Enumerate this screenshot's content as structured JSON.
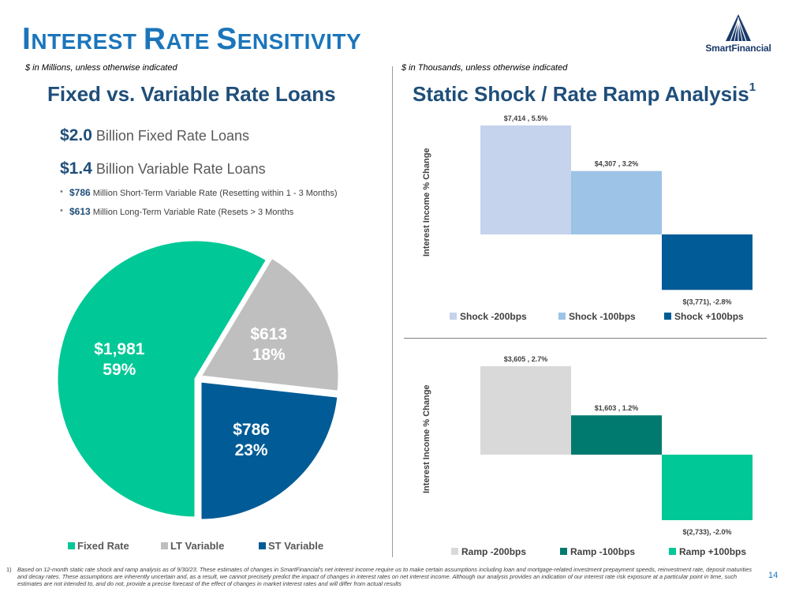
{
  "header": {
    "title_first_cap": "I",
    "title_first_rest": "NTEREST ",
    "title_second_cap": "R",
    "title_second_rest": "ATE ",
    "title_third_cap": "S",
    "title_third_rest": "ENSITIVITY",
    "logo_text": "SmartFinancial",
    "brand_color": "#1b75bb"
  },
  "left": {
    "unit_note": "$ in Millions, unless otherwise indicated",
    "heading": "Fixed vs. Variable Rate Loans",
    "fixed_amount": "$2.0",
    "fixed_text": " Billion Fixed Rate Loans",
    "variable_amount": "$1.4",
    "variable_text": " Billion Variable Rate Loans",
    "bullets": [
      {
        "amount": "$786",
        "text": " Million Short-Term Variable Rate (Resetting within 1 - 3 Months)"
      },
      {
        "amount": "$613",
        "text": " Million Long-Term Variable Rate (Resets > 3 Months"
      }
    ]
  },
  "right": {
    "unit_note": "$ in Thousands, unless otherwise indicated",
    "heading": "Static Shock / Rate Ramp Analysis",
    "heading_sup": "1"
  },
  "chart_data": [
    {
      "type": "pie",
      "title": "Fixed vs. Variable Rate Loans",
      "slices": [
        {
          "name": "Fixed Rate",
          "value": 1981,
          "label": "$1,981",
          "pct_label": "59%",
          "color": "#00c896"
        },
        {
          "name": "LT Variable",
          "value": 613,
          "label": "$613",
          "pct_label": "18%",
          "color": "#bfbfbf"
        },
        {
          "name": "ST Variable",
          "value": 786,
          "label": "$786",
          "pct_label": "23%",
          "color": "#005b96"
        }
      ]
    },
    {
      "type": "bar",
      "title": "Static Shock",
      "ylabel": "Interest Income % Change",
      "series": [
        {
          "name": "Shock -200bps",
          "value": 5.5,
          "amount": 7414,
          "label": "$7,414 , 5.5%",
          "color": "#c5d3ec"
        },
        {
          "name": "Shock -100bps",
          "value": 3.2,
          "amount": 4307,
          "label": "$4,307 , 3.2%",
          "color": "#9dc3e6"
        },
        {
          "name": "Shock +100bps",
          "value": -2.8,
          "amount": -3771,
          "label": "$(3,771), -2.8%",
          "color": "#005b96"
        }
      ],
      "ylim": [
        -3,
        6
      ]
    },
    {
      "type": "bar",
      "title": "Rate Ramp",
      "ylabel": "Interest Income % Change",
      "series": [
        {
          "name": "Ramp -200bps",
          "value": 2.7,
          "amount": 3605,
          "label": "$3,605 , 2.7%",
          "color": "#d9d9d9"
        },
        {
          "name": "Ramp -100bps",
          "value": 1.2,
          "amount": 1603,
          "label": "$1,603 , 1.2%",
          "color": "#007a6e"
        },
        {
          "name": "Ramp +100bps",
          "value": -2.0,
          "amount": -2733,
          "label": "$(2,733), -2.0%",
          "color": "#00c896"
        }
      ],
      "ylim": [
        -2.2,
        3
      ]
    }
  ],
  "footnote": {
    "number": "1)",
    "text": "Based on 12-month static rate shock and ramp analysis as of 9/30/23. These estimates of changes in SmartFinancial's net interest income require us to make certain assumptions including loan and mortgage-related investment prepayment speeds, reinvestment rate, deposit maturities and decay rates. These assumptions are inherently uncertain and, as a result, we cannot precisely predict the impact of changes in interest rates on net interest income. Although our analysis provides an indication of our interest rate risk exposure at a particular point in time, such estimates are not intended to, and do not, provide a precise forecast of the effect of changes in market interest rates and will differ from actual results"
  },
  "page_number": "14"
}
